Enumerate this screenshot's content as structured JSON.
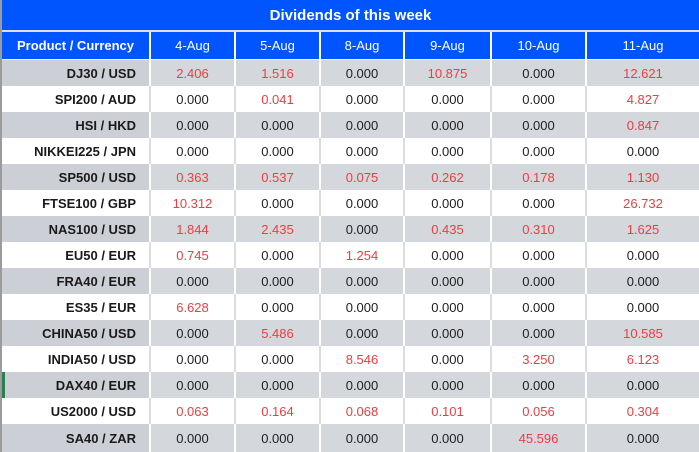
{
  "title": "Dividends of this week",
  "table": {
    "columns": [
      "Product / Currency",
      "4-Aug",
      "5-Aug",
      "8-Aug",
      "9-Aug",
      "10-Aug",
      "11-Aug"
    ],
    "rows": [
      {
        "product": "DJ30 / USD",
        "values": [
          "2.406",
          "1.516",
          "0.000",
          "10.875",
          "0.000",
          "12.621"
        ]
      },
      {
        "product": "SPI200 / AUD",
        "values": [
          "0.000",
          "0.041",
          "0.000",
          "0.000",
          "0.000",
          "4.827"
        ]
      },
      {
        "product": "HSI / HKD",
        "values": [
          "0.000",
          "0.000",
          "0.000",
          "0.000",
          "0.000",
          "0.847"
        ]
      },
      {
        "product": "NIKKEI225 / JPN",
        "values": [
          "0.000",
          "0.000",
          "0.000",
          "0.000",
          "0.000",
          "0.000"
        ]
      },
      {
        "product": "SP500 / USD",
        "values": [
          "0.363",
          "0.537",
          "0.075",
          "0.262",
          "0.178",
          "1.130"
        ]
      },
      {
        "product": "FTSE100 / GBP",
        "values": [
          "10.312",
          "0.000",
          "0.000",
          "0.000",
          "0.000",
          "26.732"
        ]
      },
      {
        "product": "NAS100 / USD",
        "values": [
          "1.844",
          "2.435",
          "0.000",
          "0.435",
          "0.310",
          "1.625"
        ]
      },
      {
        "product": "EU50 / EUR",
        "values": [
          "0.745",
          "0.000",
          "1.254",
          "0.000",
          "0.000",
          "0.000"
        ]
      },
      {
        "product": "FRA40 / EUR",
        "values": [
          "0.000",
          "0.000",
          "0.000",
          "0.000",
          "0.000",
          "0.000"
        ]
      },
      {
        "product": "ES35 / EUR",
        "values": [
          "6.628",
          "0.000",
          "0.000",
          "0.000",
          "0.000",
          "0.000"
        ]
      },
      {
        "product": "CHINA50 / USD",
        "values": [
          "0.000",
          "5.486",
          "0.000",
          "0.000",
          "0.000",
          "10.585"
        ]
      },
      {
        "product": "INDIA50 / USD",
        "values": [
          "0.000",
          "0.000",
          "8.546",
          "0.000",
          "3.250",
          "6.123"
        ]
      },
      {
        "product": "DAX40 / EUR",
        "values": [
          "0.000",
          "0.000",
          "0.000",
          "0.000",
          "0.000",
          "0.000"
        ],
        "accent": true
      },
      {
        "product": "US2000 / USD",
        "values": [
          "0.063",
          "0.164",
          "0.068",
          "0.101",
          "0.056",
          "0.304"
        ]
      },
      {
        "product": "SA40 / ZAR",
        "values": [
          "0.000",
          "0.000",
          "0.000",
          "0.000",
          "45.596",
          "0.000"
        ]
      }
    ]
  },
  "colors": {
    "header_blue": "#0055fe",
    "nonzero_red": "#ee3d42",
    "zero_text": "#1e1e1e",
    "gray_row": "#d4d7dc",
    "accent_green": "#2f7d53"
  }
}
